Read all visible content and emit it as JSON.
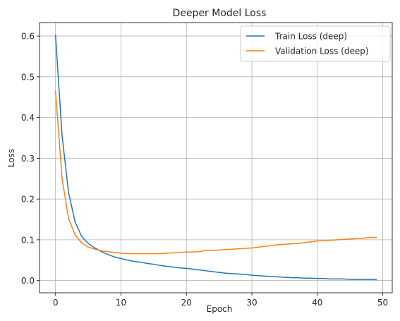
{
  "chart_data": {
    "type": "line",
    "title": "Deeper Model Loss",
    "xlabel": "Epoch",
    "ylabel": "Loss",
    "xlim": [
      -2.45,
      51.45
    ],
    "ylim": [
      -0.03,
      0.633
    ],
    "xticks": [
      0,
      10,
      20,
      30,
      40,
      50
    ],
    "yticks": [
      0.0,
      0.1,
      0.2,
      0.3,
      0.4,
      0.5,
      0.6
    ],
    "ytick_labels": [
      "0.0",
      "0.1",
      "0.2",
      "0.3",
      "0.4",
      "0.5",
      "0.6"
    ],
    "grid": true,
    "legend_position": "upper right",
    "x": [
      0,
      1,
      2,
      3,
      4,
      5,
      6,
      7,
      8,
      9,
      10,
      11,
      12,
      13,
      14,
      15,
      16,
      17,
      18,
      19,
      20,
      21,
      22,
      23,
      24,
      25,
      26,
      27,
      28,
      29,
      30,
      31,
      32,
      33,
      34,
      35,
      36,
      37,
      38,
      39,
      40,
      41,
      42,
      43,
      44,
      45,
      46,
      47,
      48,
      49
    ],
    "series": [
      {
        "name": "Train Loss (deep)",
        "color": "#1f77b4",
        "values": [
          0.602,
          0.355,
          0.215,
          0.143,
          0.108,
          0.091,
          0.08,
          0.071,
          0.064,
          0.058,
          0.054,
          0.05,
          0.047,
          0.045,
          0.042,
          0.04,
          0.037,
          0.035,
          0.033,
          0.031,
          0.03,
          0.028,
          0.026,
          0.024,
          0.022,
          0.02,
          0.018,
          0.017,
          0.016,
          0.015,
          0.013,
          0.012,
          0.011,
          0.01,
          0.009,
          0.008,
          0.007,
          0.007,
          0.006,
          0.006,
          0.005,
          0.005,
          0.004,
          0.004,
          0.004,
          0.003,
          0.003,
          0.003,
          0.003,
          0.002
        ]
      },
      {
        "name": "Validation Loss (deep)",
        "color": "#ff7f0e",
        "values": [
          0.465,
          0.25,
          0.152,
          0.112,
          0.092,
          0.082,
          0.077,
          0.073,
          0.071,
          0.069,
          0.067,
          0.066,
          0.066,
          0.066,
          0.066,
          0.066,
          0.066,
          0.067,
          0.068,
          0.069,
          0.07,
          0.07,
          0.071,
          0.074,
          0.074,
          0.075,
          0.076,
          0.077,
          0.078,
          0.079,
          0.08,
          0.082,
          0.084,
          0.086,
          0.088,
          0.089,
          0.09,
          0.091,
          0.093,
          0.095,
          0.097,
          0.098,
          0.099,
          0.1,
          0.101,
          0.102,
          0.103,
          0.104,
          0.106,
          0.106
        ]
      }
    ]
  }
}
